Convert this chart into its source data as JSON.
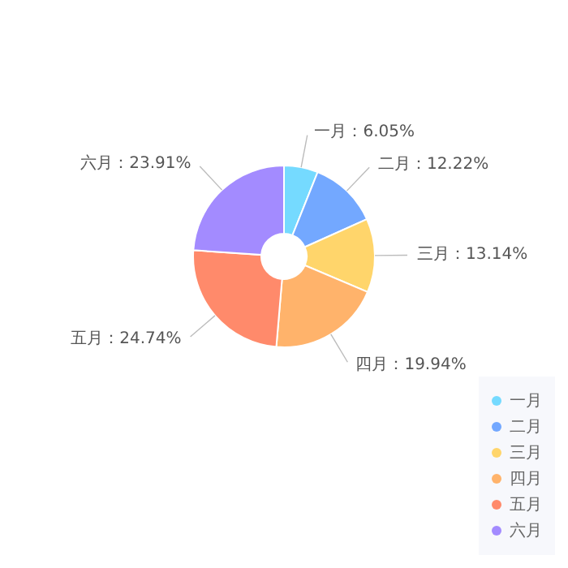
{
  "chart_data": {
    "type": "donut",
    "categories": [
      "一月",
      "二月",
      "三月",
      "四月",
      "五月",
      "六月"
    ],
    "values": [
      6.05,
      12.22,
      13.14,
      19.94,
      24.74,
      23.91
    ],
    "colors": [
      "#75daff",
      "#73a8ff",
      "#ffd56b",
      "#ffb36b",
      "#ff8a6b",
      "#a38bff"
    ],
    "value_labels": [
      "一月：6.05%",
      "二月：12.22%",
      "三月：13.14%",
      "四月：19.94%",
      "五月：24.74%",
      "六月：23.91%"
    ],
    "legend": "bottom right"
  }
}
